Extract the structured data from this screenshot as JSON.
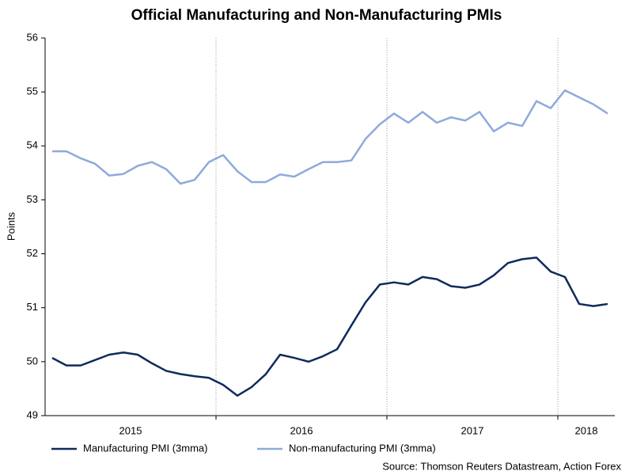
{
  "chart_data": {
    "type": "line",
    "title": "Official Manufacturing and Non-Manufacturing PMIs",
    "y_label": "Points",
    "source": "Source: Thomson Reuters Datastream, Action Forex",
    "categories": [
      "2015",
      null,
      null,
      null,
      null,
      null,
      null,
      null,
      null,
      null,
      null,
      null,
      "2016",
      null,
      null,
      null,
      null,
      null,
      null,
      null,
      null,
      null,
      null,
      null,
      "2017",
      null,
      null,
      null,
      null,
      null,
      null,
      null,
      null,
      null,
      null,
      null,
      "2018",
      null,
      null,
      null
    ],
    "ylim": [
      49,
      56
    ],
    "yticks": [
      49,
      50,
      51,
      52,
      53,
      54,
      55,
      56
    ],
    "grid": "x",
    "legend": "bottom",
    "series": [
      {
        "name": "Manufacturing PMI (3mma)",
        "color": "#0f2b5b",
        "values": [
          50.07,
          49.93,
          49.93,
          50.03,
          50.13,
          50.17,
          50.13,
          49.97,
          49.83,
          49.77,
          49.73,
          49.7,
          49.57,
          49.37,
          49.53,
          49.77,
          50.13,
          50.07,
          50.0,
          50.1,
          50.23,
          50.67,
          51.1,
          51.43,
          51.47,
          51.43,
          51.57,
          51.53,
          51.4,
          51.37,
          51.43,
          51.6,
          51.83,
          51.9,
          51.93,
          51.67,
          51.57,
          51.07,
          51.03,
          51.07
        ]
      },
      {
        "name": "Non-manufacturing PMI (3mma)",
        "color": "#8eaadb",
        "values": [
          53.9,
          53.9,
          53.77,
          53.67,
          53.45,
          53.48,
          53.63,
          53.7,
          53.57,
          53.3,
          53.37,
          53.7,
          53.83,
          53.53,
          53.33,
          53.33,
          53.47,
          53.43,
          53.57,
          53.7,
          53.7,
          53.73,
          54.13,
          54.4,
          54.6,
          54.43,
          54.63,
          54.43,
          54.53,
          54.47,
          54.63,
          54.27,
          54.43,
          54.37,
          54.83,
          54.7,
          55.03,
          54.9,
          54.77,
          54.6
        ]
      }
    ]
  }
}
